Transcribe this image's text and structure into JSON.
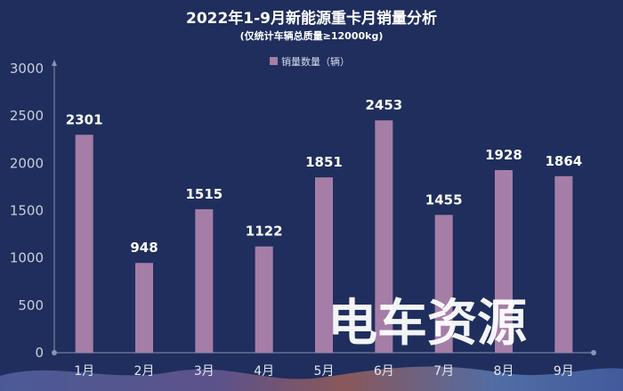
{
  "chart_data": {
    "type": "bar",
    "title": "2022年1-9月新能源重卡月销量分析",
    "subtitle": "(仅统计车辆总质量≥12000kg)",
    "legend": {
      "label": "销量数量（辆）",
      "position": "top-center"
    },
    "categories": [
      "1月",
      "2月",
      "3月",
      "4月",
      "5月",
      "6月",
      "7月",
      "8月",
      "9月"
    ],
    "values": [
      2301,
      948,
      1515,
      1122,
      1851,
      2453,
      1455,
      1928,
      1864
    ],
    "ylim": [
      0,
      3000
    ],
    "yticks": [
      "0",
      "500",
      "1000",
      "1500",
      "2000",
      "2500",
      "3000"
    ],
    "grid": false,
    "colors": {
      "bar": "#a57ea8",
      "background": "#1f2e5c"
    }
  },
  "watermark": {
    "text": "电车资源"
  }
}
